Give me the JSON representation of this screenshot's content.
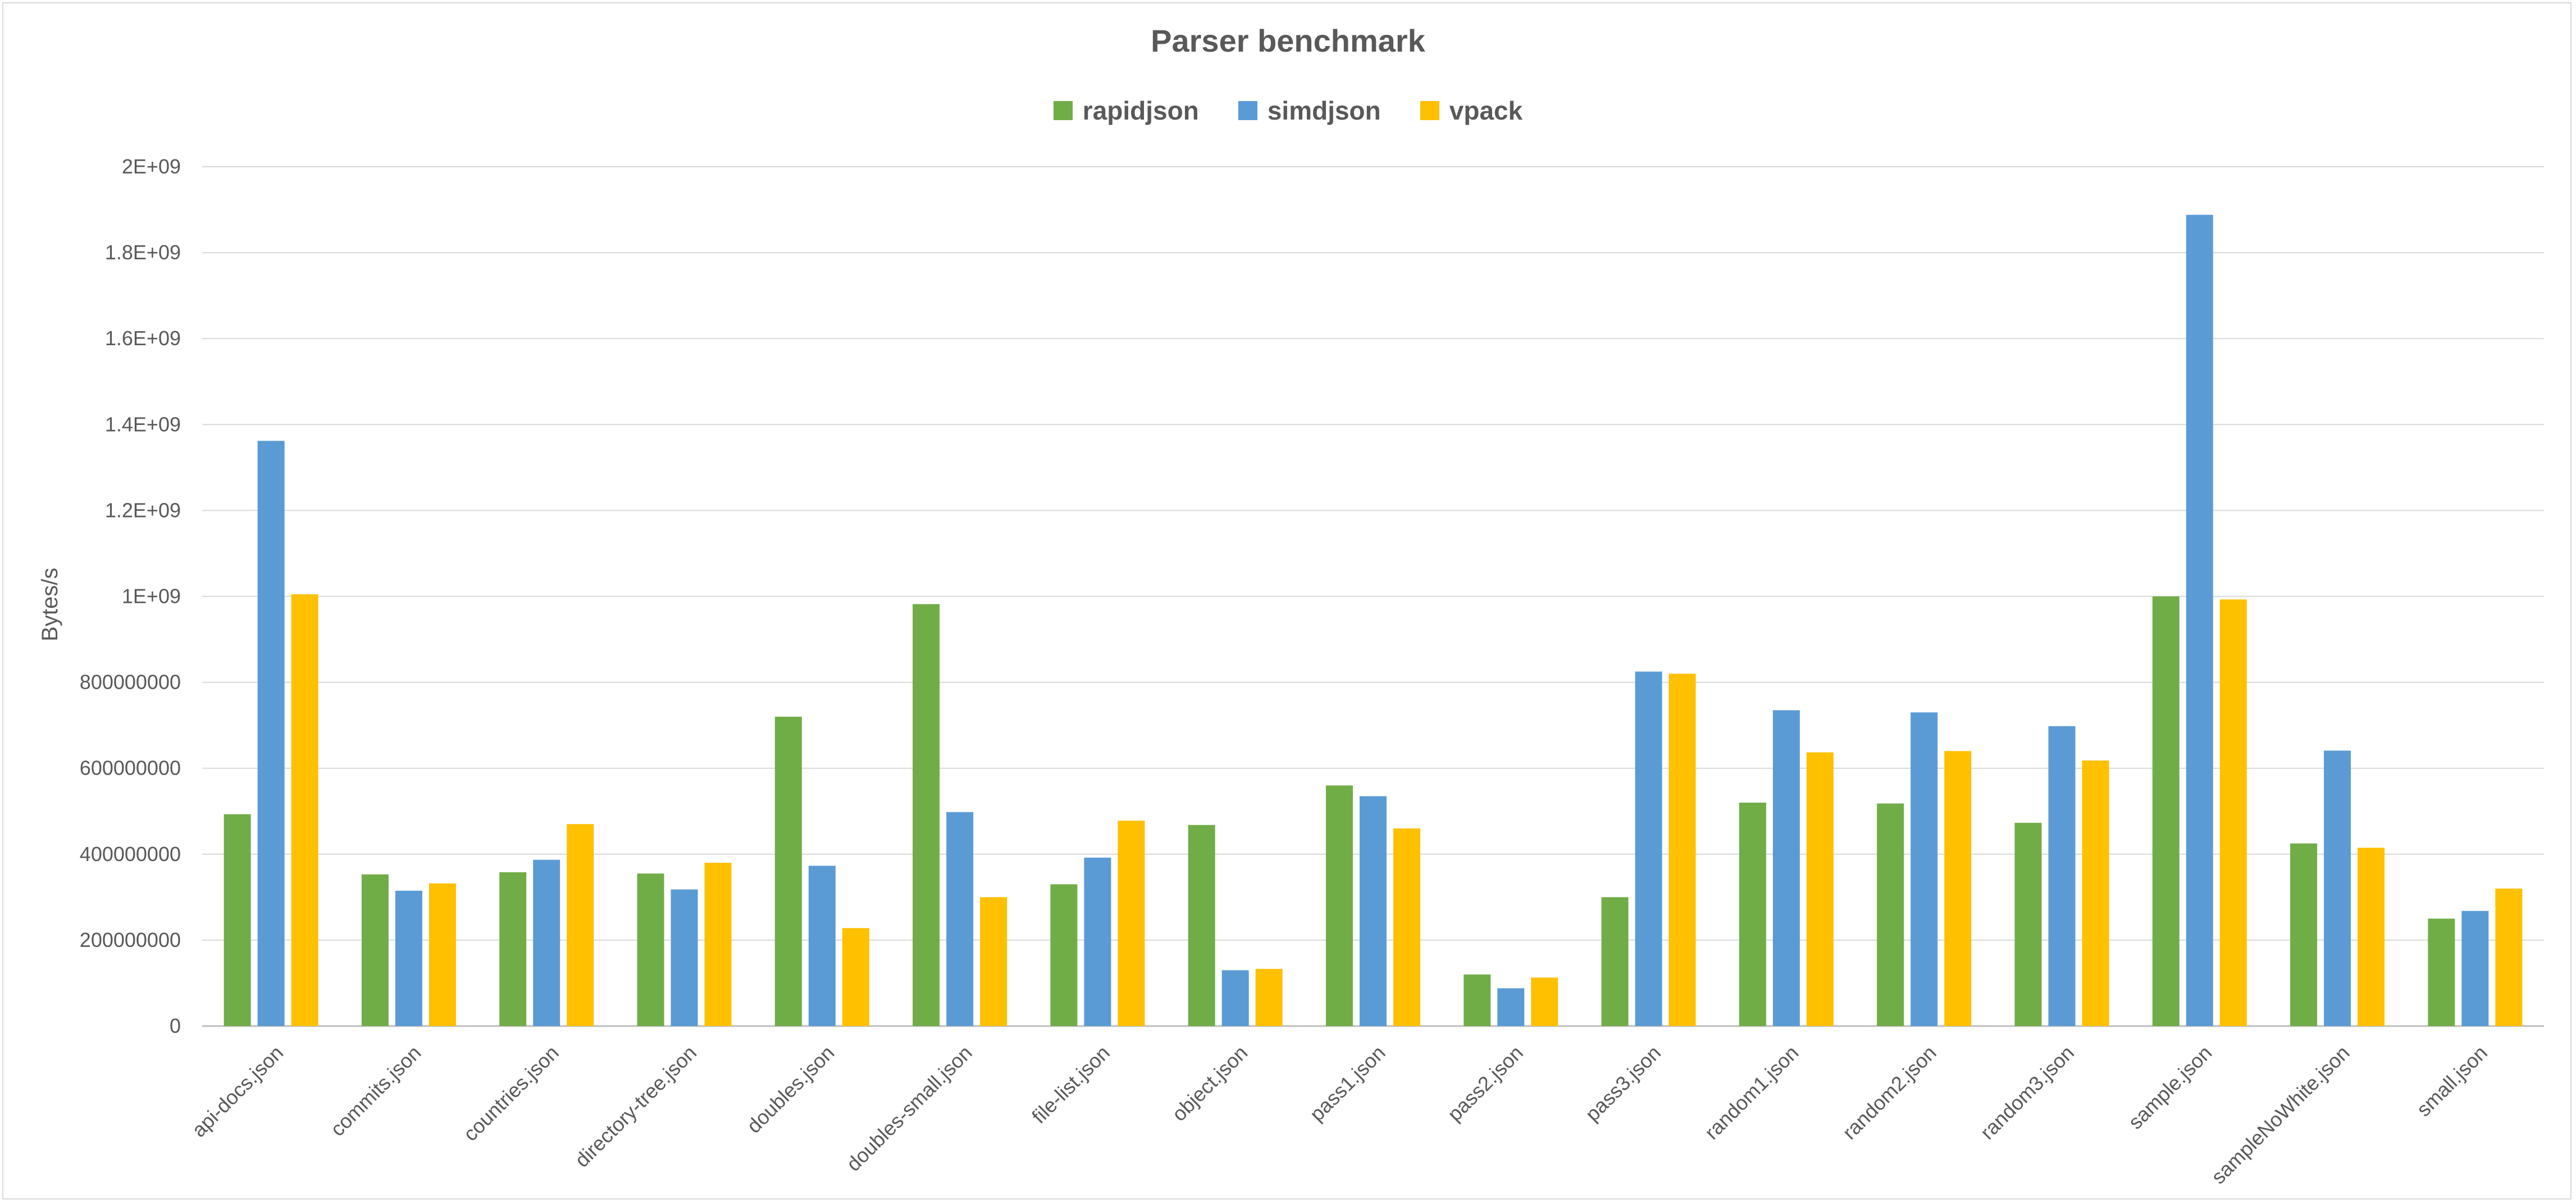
{
  "chart_data": {
    "type": "bar",
    "title": "Parser benchmark",
    "xlabel": "",
    "ylabel": "Bytes/s",
    "ylim": [
      0,
      2000000000
    ],
    "yticks": [
      "0",
      "200000000",
      "400000000",
      "600000000",
      "800000000",
      "1E+09",
      "1.2E+09",
      "1.4E+09",
      "1.6E+09",
      "1.8E+09",
      "2E+09"
    ],
    "grid": true,
    "legend_position": "top",
    "categories": [
      "api-docs.json",
      "commits.json",
      "countries.json",
      "directory-tree.json",
      "doubles.json",
      "doubles-small.json",
      "file-list.json",
      "object.json",
      "pass1.json",
      "pass2.json",
      "pass3.json",
      "random1.json",
      "random2.json",
      "random3.json",
      "sample.json",
      "sampleNoWhite.json",
      "small.json"
    ],
    "series": [
      {
        "name": "rapidjson",
        "color": "#70ad47",
        "values": [
          493000000,
          353000000,
          358000000,
          355000000,
          720000000,
          982000000,
          330000000,
          468000000,
          560000000,
          120000000,
          300000000,
          520000000,
          518000000,
          473000000,
          1000000000,
          425000000,
          250000000
        ]
      },
      {
        "name": "simdjson",
        "color": "#5b9bd5",
        "values": [
          1362000000,
          315000000,
          387000000,
          318000000,
          373000000,
          498000000,
          392000000,
          130000000,
          535000000,
          88000000,
          825000000,
          735000000,
          730000000,
          698000000,
          1888000000,
          641000000,
          268000000
        ]
      },
      {
        "name": "vpack",
        "color": "#ffc000",
        "values": [
          1005000000,
          332000000,
          470000000,
          380000000,
          228000000,
          300000000,
          478000000,
          133000000,
          460000000,
          113000000,
          820000000,
          637000000,
          640000000,
          618000000,
          993000000,
          415000000,
          320000000
        ]
      }
    ]
  }
}
